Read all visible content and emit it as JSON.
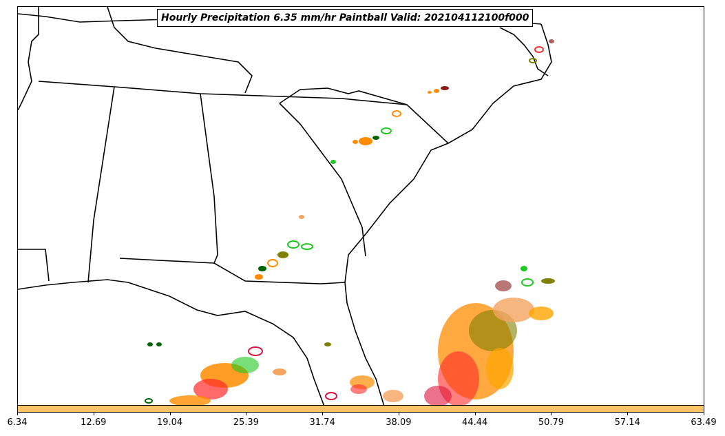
{
  "title": "Hourly Precipitation 6.35 mm/hr Paintball Valid: 202104112100f000",
  "colorbar": {
    "color": "#ffc466",
    "ticks": [
      "6.34",
      "12.69",
      "19.04",
      "25.39",
      "31.74",
      "38.09",
      "44.44",
      "50.79",
      "57.14",
      "63.49"
    ]
  },
  "colors": {
    "coastline": "#000000",
    "member_colors": [
      "#ff8c00",
      "#1ec81e",
      "#006400",
      "#8b1a1a",
      "#808000",
      "#ff2a2a",
      "#f4a460",
      "#dc143c",
      "#ffa500"
    ]
  }
}
